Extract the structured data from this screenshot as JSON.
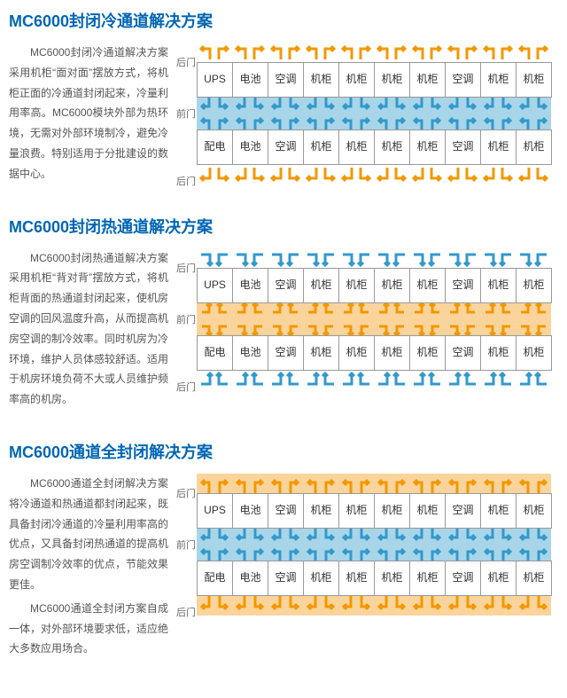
{
  "colors": {
    "orange": "#f39800",
    "blue": "#3399cc",
    "coldBg": "#a8d5e8",
    "hotBg": "#fbd49c",
    "title": "#0066b3",
    "border": "#999999"
  },
  "racks": {
    "row1": [
      "UPS",
      "电池",
      "空调",
      "机柜",
      "机柜",
      "机柜",
      "机柜",
      "空调",
      "机柜",
      "机柜"
    ],
    "row2": [
      "配电",
      "电池",
      "空调",
      "机柜",
      "机柜",
      "机柜",
      "机柜",
      "空调",
      "机柜",
      "机柜"
    ]
  },
  "labels": {
    "backDoor": "后门",
    "frontDoor": "前门"
  },
  "sections": [
    {
      "id": "cold",
      "title": "MC6000封闭冷通道解决方案",
      "desc": "MC6000封闭冷通道解决方案采用机柜“面对面”摆放方式，将机柜正面的冷通道封闭起来，冷量利用率高。MC6000模块外部为热环境，无需对外部环境制冷，避免冷量浪费。特别适用于分批建设的数据中心。",
      "arrow": {
        "top": "orange-up",
        "bottom": "orange-down",
        "channel": "cold"
      }
    },
    {
      "id": "hot",
      "title": "MC6000封闭热通道解决方案",
      "desc": "MC6000封闭热通道解决方案采用机柜“背对背”摆放方式，将机柜背面的热通道封闭起来，使机房空调的回风温度升高，从而提高机房空调的制冷效率。同时机房为冷环境，维护人员体感较舒适。适用于机房环境负荷不大或人员维护频率高的机房。",
      "arrow": {
        "top": "blue-down",
        "bottom": "blue-up",
        "channel": "hot"
      }
    },
    {
      "id": "full",
      "title": "MC6000通道全封闭解决方案",
      "desc": "MC6000通道全封闭解决方案将冷通道和热通道都封闭起来，既具备封闭冷通道的冷量利用率高的优点，又具备封闭热通道的提高机房空调制冷效率的优点，节能效果更佳。\nMC6000通道全封闭方案自成一体，对外部环境要求低，适应绝大多数应用场合。",
      "arrow": {
        "top": "hotband",
        "bottom": "hotband",
        "channel": "cold"
      }
    }
  ]
}
